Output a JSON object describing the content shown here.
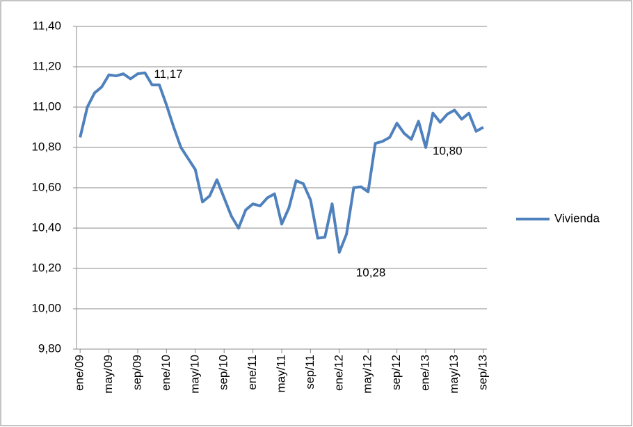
{
  "chart_data": {
    "type": "line",
    "categories": [
      "ene/09",
      null,
      null,
      null,
      "may/09",
      null,
      null,
      null,
      "sep/09",
      null,
      null,
      null,
      "ene/10",
      null,
      null,
      null,
      "may/10",
      null,
      null,
      null,
      "sep/10",
      null,
      null,
      null,
      "ene/11",
      null,
      null,
      null,
      "may/11",
      null,
      null,
      null,
      "sep/11",
      null,
      null,
      null,
      "ene/12",
      null,
      null,
      null,
      "may/12",
      null,
      null,
      null,
      "sep/12",
      null,
      null,
      null,
      "ene/13",
      null,
      null,
      null,
      "may/13",
      null,
      null,
      null,
      "sep/13"
    ],
    "series": [
      {
        "name": "Vivienda",
        "color": "#4f81bd",
        "values": [
          10.85,
          11.0,
          11.07,
          11.1,
          11.16,
          11.155,
          11.165,
          11.14,
          11.165,
          11.17,
          11.11,
          11.11,
          11.01,
          10.9,
          10.8,
          10.745,
          10.69,
          10.53,
          10.56,
          10.64,
          10.55,
          10.46,
          10.4,
          10.49,
          10.52,
          10.51,
          10.55,
          10.57,
          10.42,
          10.5,
          10.635,
          10.62,
          10.54,
          10.35,
          10.355,
          10.52,
          10.28,
          10.37,
          10.6,
          10.605,
          10.58,
          10.82,
          10.83,
          10.85,
          10.92,
          10.87,
          10.84,
          10.93,
          10.8,
          10.97,
          10.925,
          10.965,
          10.985,
          10.94,
          10.97,
          10.88,
          10.9
        ],
        "value_labels": [
          null,
          null,
          null,
          null,
          null,
          null,
          null,
          null,
          null,
          "11,17",
          null,
          null,
          null,
          null,
          null,
          null,
          null,
          null,
          null,
          null,
          null,
          null,
          null,
          null,
          null,
          null,
          null,
          null,
          null,
          null,
          null,
          null,
          null,
          null,
          null,
          null,
          "10,28",
          null,
          null,
          null,
          null,
          null,
          null,
          null,
          null,
          null,
          null,
          null,
          "10,80",
          null,
          null,
          null,
          null,
          null,
          null,
          null,
          null
        ]
      }
    ],
    "ylim": [
      9.8,
      11.4
    ],
    "yticks": [
      {
        "value": 9.8,
        "label": "9,80"
      },
      {
        "value": 10.0,
        "label": "10,00"
      },
      {
        "value": 10.2,
        "label": "10,20"
      },
      {
        "value": 10.4,
        "label": "10,40"
      },
      {
        "value": 10.6,
        "label": "10,60"
      },
      {
        "value": 10.8,
        "label": "10,80"
      },
      {
        "value": 11.0,
        "label": "11,00"
      },
      {
        "value": 11.2,
        "label": "11,20"
      },
      {
        "value": 11.4,
        "label": "11,40"
      }
    ],
    "grid": true,
    "legend": "right"
  }
}
